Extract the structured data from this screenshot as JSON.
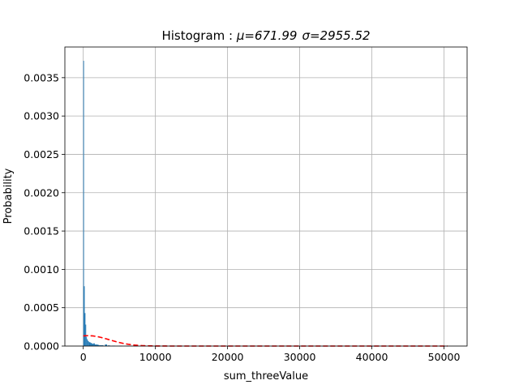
{
  "chart_data": {
    "type": "bar",
    "title_prefix": "Histogram : ",
    "title_mu": "μ=671.99",
    "title_sigma": "σ=2955.52",
    "xlabel": "sum_threeValue",
    "ylabel": "Probability",
    "xlim": [
      -2550,
      53200
    ],
    "ylim": [
      0,
      0.0039
    ],
    "xticks": [
      0,
      10000,
      20000,
      30000,
      40000,
      50000
    ],
    "xtick_labels": [
      "0",
      "10000",
      "20000",
      "30000",
      "40000",
      "50000"
    ],
    "yticks": [
      0,
      0.0005,
      0.001,
      0.0015,
      0.002,
      0.0025,
      0.003,
      0.0035
    ],
    "ytick_labels": [
      "0.0000",
      "0.0005",
      "0.0010",
      "0.0015",
      "0.0020",
      "0.0025",
      "0.0030",
      "0.0035"
    ],
    "grid": true,
    "bar_color": "#1f77b4",
    "curve_color": "#ff0000",
    "bins": [
      {
        "x": 0,
        "width": 100,
        "value": 0.00372
      },
      {
        "x": 100,
        "width": 100,
        "value": 0.00078
      },
      {
        "x": 200,
        "width": 100,
        "value": 0.00043
      },
      {
        "x": 300,
        "width": 100,
        "value": 0.00028
      },
      {
        "x": 400,
        "width": 100,
        "value": 0.00012
      },
      {
        "x": 500,
        "width": 100,
        "value": 9e-05
      },
      {
        "x": 600,
        "width": 100,
        "value": 7e-05
      },
      {
        "x": 700,
        "width": 100,
        "value": 6e-05
      },
      {
        "x": 800,
        "width": 200,
        "value": 5e-05
      },
      {
        "x": 1000,
        "width": 200,
        "value": 4e-05
      },
      {
        "x": 1200,
        "width": 200,
        "value": 3e-05
      },
      {
        "x": 1400,
        "width": 200,
        "value": 3.5e-05
      },
      {
        "x": 1600,
        "width": 200,
        "value": 2e-05
      },
      {
        "x": 1800,
        "width": 200,
        "value": 2e-05
      },
      {
        "x": 2000,
        "width": 200,
        "value": 1.5e-05
      },
      {
        "x": 2200,
        "width": 300,
        "value": 1e-05
      },
      {
        "x": 2500,
        "width": 300,
        "value": 1e-05
      },
      {
        "x": 3000,
        "width": 300,
        "value": 2e-05
      },
      {
        "x": 3400,
        "width": 300,
        "value": 8e-06
      },
      {
        "x": 4000,
        "width": 400,
        "value": 5e-06
      },
      {
        "x": 5000,
        "width": 400,
        "value": 4e-06
      },
      {
        "x": 6000,
        "width": 400,
        "value": 3e-06
      },
      {
        "x": 7000,
        "width": 500,
        "value": 2e-06
      },
      {
        "x": 9000,
        "width": 500,
        "value": 2e-06
      },
      {
        "x": 12000,
        "width": 500,
        "value": 1.5e-06
      },
      {
        "x": 16000,
        "width": 500,
        "value": 1e-06
      },
      {
        "x": 20000,
        "width": 500,
        "value": 1e-06
      },
      {
        "x": 26000,
        "width": 500,
        "value": 1e-06
      },
      {
        "x": 33000,
        "width": 500,
        "value": 1e-06
      },
      {
        "x": 40000,
        "width": 500,
        "value": 1e-06
      },
      {
        "x": 46000,
        "width": 500,
        "value": 1e-06
      },
      {
        "x": 50000,
        "width": 500,
        "value": 1e-06
      }
    ],
    "normal_curve": {
      "style": "dashed",
      "mu": 671.99,
      "sigma": 2955.52,
      "x_range": [
        0,
        50500
      ]
    }
  }
}
